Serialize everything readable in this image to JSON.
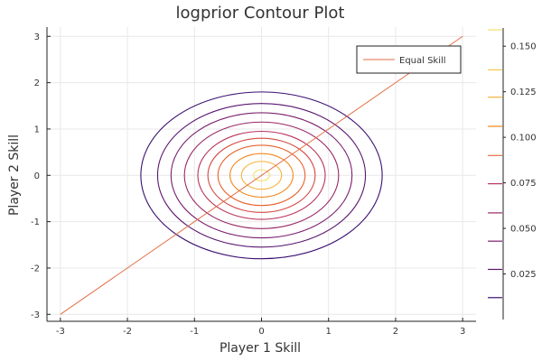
{
  "chart_data": {
    "type": "contour",
    "title": "logprior Contour Plot",
    "xlabel": "Player 1 Skill",
    "ylabel": "Player 2 Skill",
    "xlim": [
      -3.2,
      3.2
    ],
    "ylim": [
      -3.15,
      3.2
    ],
    "x_ticks": [
      -3,
      -2,
      -1,
      0,
      1,
      2,
      3
    ],
    "y_ticks": [
      -3,
      -2,
      -1,
      0,
      1,
      2,
      3
    ],
    "grid": true,
    "legend_position": "top-right",
    "line": {
      "name": "Equal Skill",
      "color": "#e26f46",
      "x": [
        -3,
        3
      ],
      "y": [
        -3,
        3
      ]
    },
    "contours": [
      {
        "level": 0.0125,
        "radius": 1.8,
        "color": "#3b0f70"
      },
      {
        "level": 0.0275,
        "radius": 1.55,
        "color": "#5a1670"
      },
      {
        "level": 0.0425,
        "radius": 1.35,
        "color": "#7a1f6d"
      },
      {
        "level": 0.0575,
        "radius": 1.15,
        "color": "#9a2865"
      },
      {
        "level": 0.0725,
        "radius": 0.95,
        "color": "#b9335a"
      },
      {
        "level": 0.0875,
        "radius": 0.8,
        "color": "#d44842"
      },
      {
        "level": 0.1025,
        "radius": 0.65,
        "color": "#e8622c"
      },
      {
        "level": 0.1175,
        "radius": 0.47,
        "color": "#f5861c"
      },
      {
        "level": 0.1325,
        "radius": 0.3,
        "color": "#f8b23a"
      },
      {
        "level": 0.1475,
        "radius": 0.12,
        "color": "#f5de6a"
      }
    ],
    "colorbar": {
      "range": [
        0.0,
        0.16
      ],
      "tick_values": [
        0.025,
        0.05,
        0.075,
        0.1,
        0.125,
        0.15
      ],
      "tick_labels": [
        "0.025",
        "0.050",
        "0.075",
        "0.100",
        "0.125",
        "0.150"
      ],
      "swatches": [
        {
          "level": 0.012,
          "color": "#3b0f70"
        },
        {
          "level": 0.0275,
          "color": "#5a1670"
        },
        {
          "level": 0.043,
          "color": "#7a1f6d"
        },
        {
          "level": 0.0585,
          "color": "#9a2865"
        },
        {
          "level": 0.0745,
          "color": "#b9335a"
        },
        {
          "level": 0.09,
          "color": "#e26f46"
        },
        {
          "level": 0.106,
          "color": "#f5861c"
        },
        {
          "level": 0.122,
          "color": "#f8b23a"
        },
        {
          "level": 0.137,
          "color": "#f9c84a"
        },
        {
          "level": 0.159,
          "color": "#f5de6a"
        }
      ]
    }
  }
}
